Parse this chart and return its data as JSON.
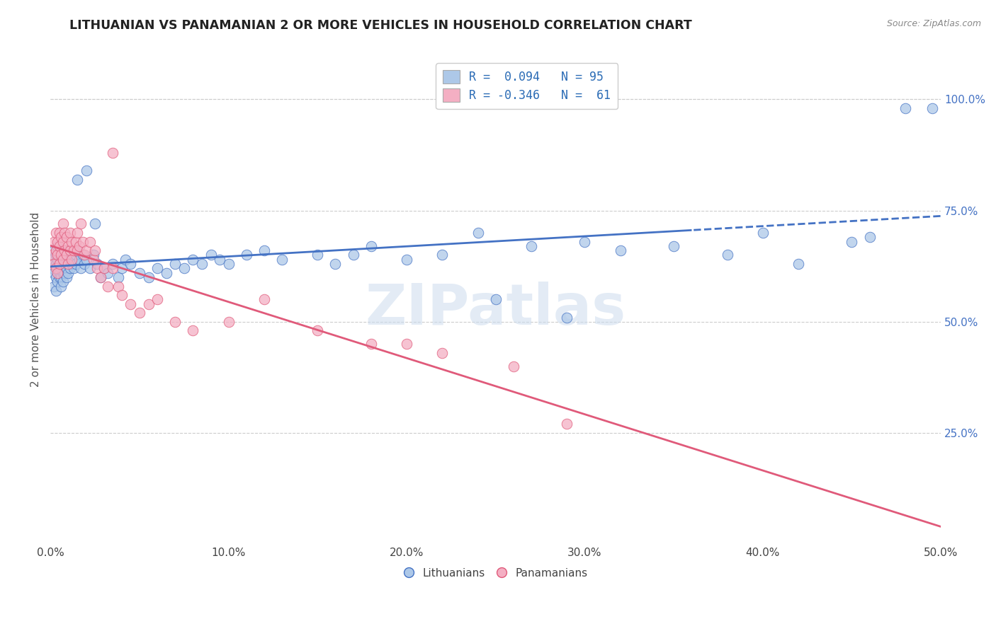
{
  "title": "LITHUANIAN VS PANAMANIAN 2 OR MORE VEHICLES IN HOUSEHOLD CORRELATION CHART",
  "source": "Source: ZipAtlas.com",
  "ylabel": "2 or more Vehicles in Household",
  "xmin": 0.0,
  "xmax": 0.5,
  "ymin": 0.0,
  "ymax": 1.1,
  "legend_r_blue": "R =  0.094",
  "legend_n_blue": "N = 95",
  "legend_r_pink": "R = -0.346",
  "legend_n_pink": "N =  61",
  "blue_color": "#adc8e8",
  "pink_color": "#f4afc3",
  "line_blue": "#4472c4",
  "line_pink": "#e05a7a",
  "legend_text_color": "#2a6bb5",
  "watermark": "ZIPatlas",
  "blue_x": [
    0.001,
    0.001,
    0.002,
    0.002,
    0.002,
    0.003,
    0.003,
    0.003,
    0.003,
    0.004,
    0.004,
    0.004,
    0.004,
    0.005,
    0.005,
    0.005,
    0.005,
    0.006,
    0.006,
    0.006,
    0.006,
    0.007,
    0.007,
    0.007,
    0.008,
    0.008,
    0.008,
    0.009,
    0.009,
    0.009,
    0.01,
    0.01,
    0.01,
    0.011,
    0.011,
    0.012,
    0.012,
    0.013,
    0.013,
    0.014,
    0.014,
    0.015,
    0.016,
    0.017,
    0.018,
    0.019,
    0.02,
    0.022,
    0.024,
    0.026,
    0.028,
    0.03,
    0.032,
    0.035,
    0.038,
    0.04,
    0.042,
    0.045,
    0.05,
    0.055,
    0.06,
    0.065,
    0.07,
    0.075,
    0.08,
    0.085,
    0.09,
    0.095,
    0.1,
    0.11,
    0.12,
    0.13,
    0.15,
    0.16,
    0.17,
    0.18,
    0.2,
    0.22,
    0.24,
    0.27,
    0.3,
    0.32,
    0.35,
    0.38,
    0.4,
    0.42,
    0.45,
    0.46,
    0.48,
    0.495,
    0.015,
    0.02,
    0.025,
    0.25,
    0.29
  ],
  "blue_y": [
    0.64,
    0.62,
    0.66,
    0.61,
    0.58,
    0.65,
    0.63,
    0.6,
    0.57,
    0.64,
    0.62,
    0.59,
    0.67,
    0.65,
    0.61,
    0.63,
    0.6,
    0.66,
    0.62,
    0.6,
    0.58,
    0.64,
    0.61,
    0.59,
    0.65,
    0.63,
    0.61,
    0.64,
    0.62,
    0.6,
    0.66,
    0.63,
    0.61,
    0.64,
    0.62,
    0.65,
    0.63,
    0.64,
    0.62,
    0.65,
    0.63,
    0.66,
    0.64,
    0.62,
    0.65,
    0.63,
    0.64,
    0.62,
    0.65,
    0.63,
    0.6,
    0.62,
    0.61,
    0.63,
    0.6,
    0.62,
    0.64,
    0.63,
    0.61,
    0.6,
    0.62,
    0.61,
    0.63,
    0.62,
    0.64,
    0.63,
    0.65,
    0.64,
    0.63,
    0.65,
    0.66,
    0.64,
    0.65,
    0.63,
    0.65,
    0.67,
    0.64,
    0.65,
    0.7,
    0.67,
    0.68,
    0.66,
    0.67,
    0.65,
    0.7,
    0.63,
    0.68,
    0.69,
    0.98,
    0.98,
    0.82,
    0.84,
    0.72,
    0.55,
    0.51
  ],
  "pink_x": [
    0.001,
    0.002,
    0.002,
    0.003,
    0.003,
    0.003,
    0.004,
    0.004,
    0.004,
    0.005,
    0.005,
    0.005,
    0.006,
    0.006,
    0.007,
    0.007,
    0.007,
    0.008,
    0.008,
    0.009,
    0.009,
    0.01,
    0.01,
    0.011,
    0.011,
    0.012,
    0.012,
    0.013,
    0.014,
    0.015,
    0.015,
    0.016,
    0.017,
    0.018,
    0.019,
    0.02,
    0.022,
    0.024,
    0.025,
    0.026,
    0.028,
    0.03,
    0.032,
    0.035,
    0.038,
    0.04,
    0.045,
    0.05,
    0.055,
    0.06,
    0.07,
    0.08,
    0.1,
    0.12,
    0.15,
    0.18,
    0.2,
    0.22,
    0.26,
    0.29,
    0.035
  ],
  "pink_y": [
    0.65,
    0.68,
    0.63,
    0.7,
    0.66,
    0.62,
    0.68,
    0.65,
    0.61,
    0.7,
    0.67,
    0.63,
    0.69,
    0.65,
    0.72,
    0.68,
    0.64,
    0.7,
    0.66,
    0.69,
    0.65,
    0.67,
    0.63,
    0.7,
    0.66,
    0.68,
    0.64,
    0.66,
    0.68,
    0.7,
    0.66,
    0.67,
    0.72,
    0.68,
    0.65,
    0.66,
    0.68,
    0.64,
    0.66,
    0.62,
    0.6,
    0.62,
    0.58,
    0.62,
    0.58,
    0.56,
    0.54,
    0.52,
    0.54,
    0.55,
    0.5,
    0.48,
    0.5,
    0.55,
    0.48,
    0.45,
    0.45,
    0.43,
    0.4,
    0.27,
    0.88
  ],
  "figsize": [
    14.06,
    8.92
  ],
  "dpi": 100
}
